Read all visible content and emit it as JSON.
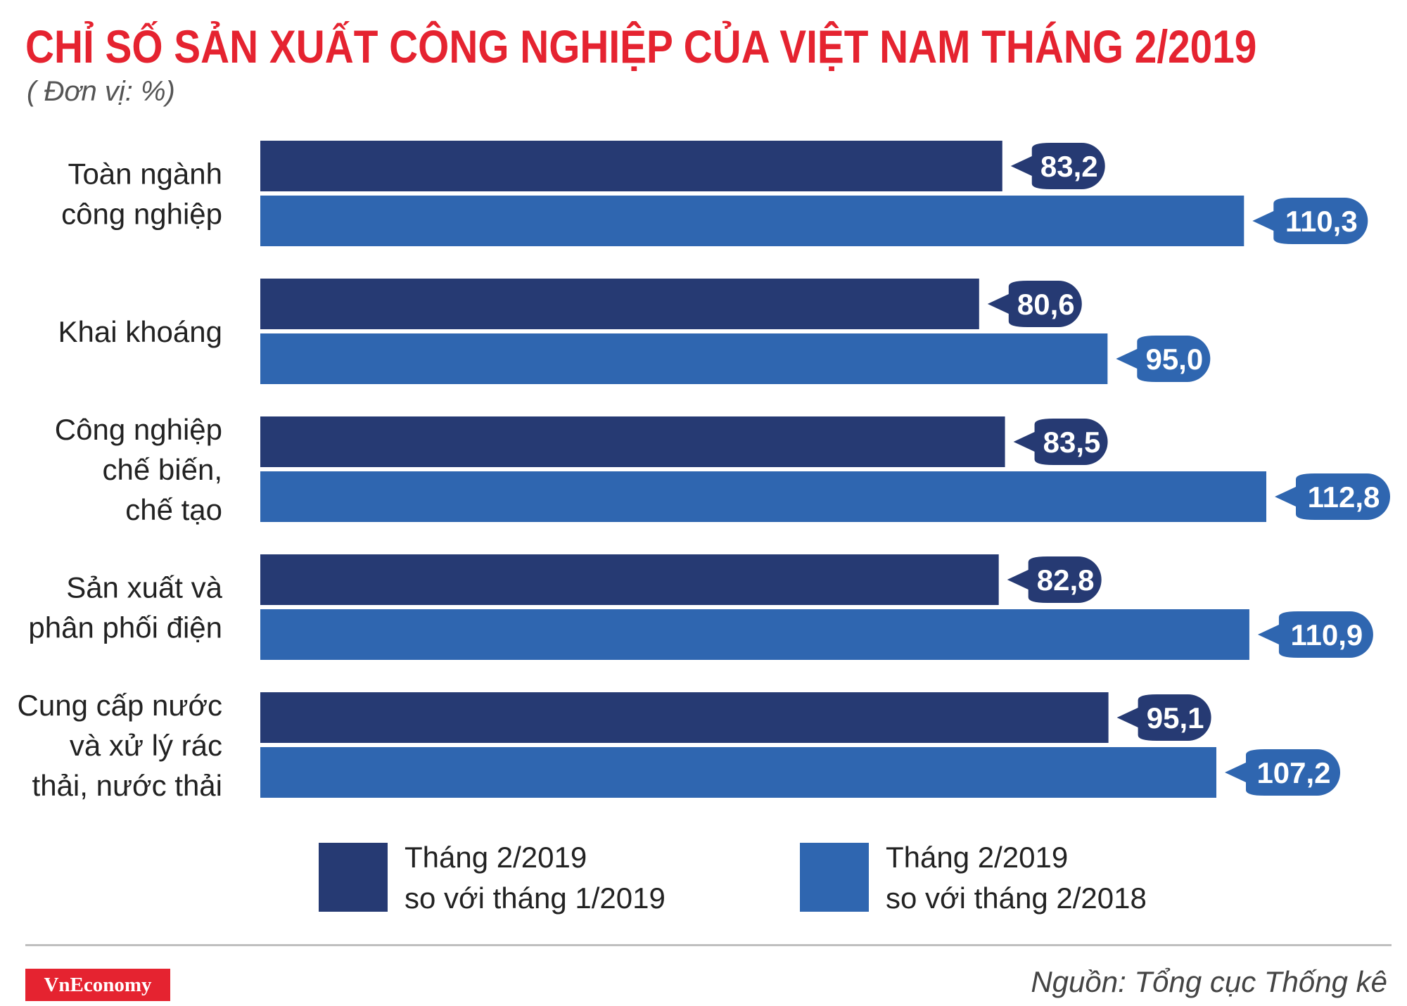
{
  "title": "CHỈ SỐ SẢN XUẤT CÔNG NGHIỆP CỦA VIỆT NAM THÁNG 2/2019",
  "unit": "( Đơn vị: %)",
  "colors": {
    "title": "#e52330",
    "series1": "#263a73",
    "series2": "#2f66b0"
  },
  "chart_data": {
    "type": "bar",
    "orientation": "horizontal",
    "categories": [
      [
        "Toàn ngành",
        "công nghiệp"
      ],
      [
        "Khai khoáng"
      ],
      [
        "Công nghiệp",
        "chế biến,",
        "chế tạo"
      ],
      [
        "Sản xuất và",
        "phân phối điện"
      ],
      [
        "Cung cấp nước",
        "và xử lý rác",
        "thải, nước thải"
      ]
    ],
    "series": [
      {
        "name": [
          "Tháng 2/2019",
          "so với tháng 1/2019"
        ],
        "values": [
          83.2,
          80.6,
          83.5,
          82.8,
          95.1
        ],
        "labels": [
          "83,2",
          "80,6",
          "83,5",
          "82,8",
          "95,1"
        ],
        "color": "#263a73"
      },
      {
        "name": [
          "Tháng 2/2019",
          "so với tháng 2/2018"
        ],
        "values": [
          110.3,
          95.0,
          112.8,
          110.9,
          107.2
        ],
        "labels": [
          "110,3",
          "95,0",
          "112,8",
          "110,9",
          "107,2"
        ],
        "color": "#2f66b0"
      }
    ],
    "xlim": [
      0,
      112.8
    ],
    "grid": false,
    "legend": "bottom"
  },
  "footer": {
    "logo": "VnEconomy",
    "source": "Nguồn: Tổng cục Thống kê"
  }
}
